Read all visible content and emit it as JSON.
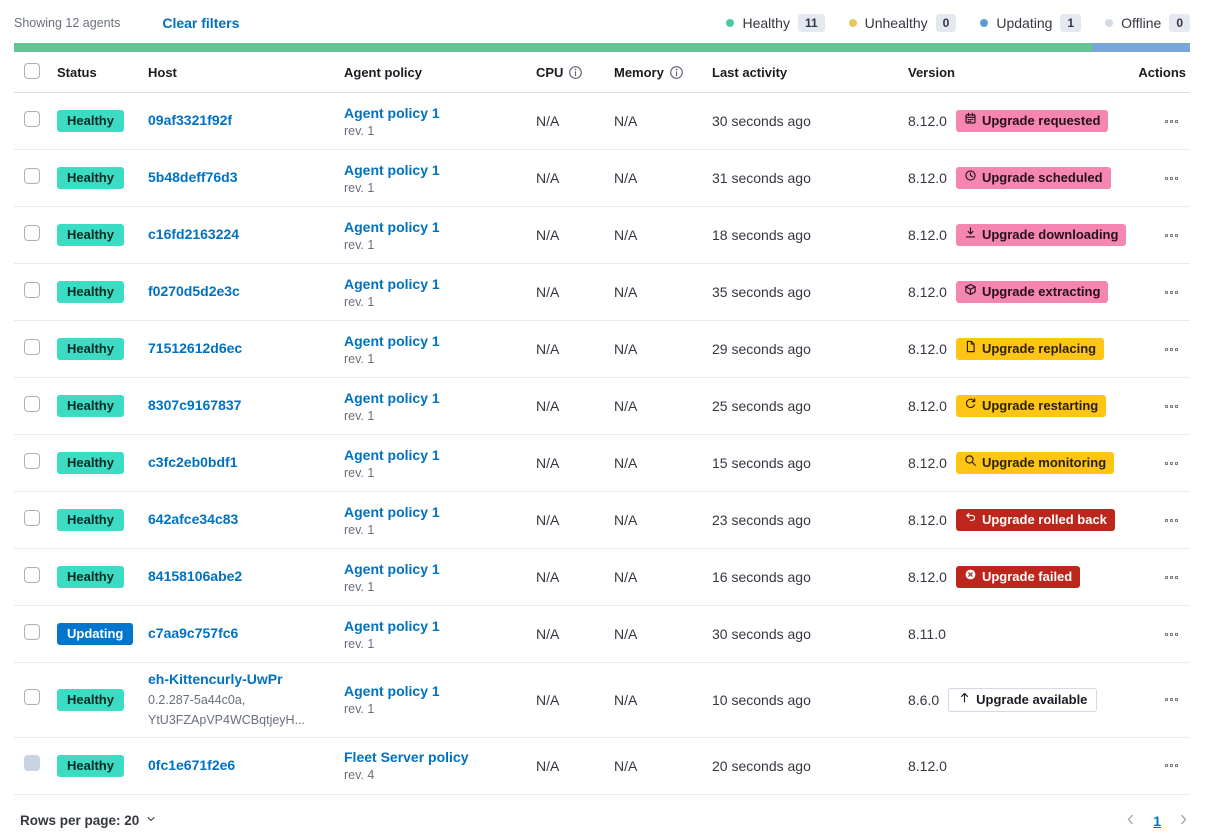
{
  "page": {
    "colors": {
      "healthy_badge": "#3BDBC4",
      "updating_badge": "#0077CC",
      "accent_badge": "#F586B1",
      "warning_badge": "#FEC514",
      "danger_badge": "#BC261D",
      "link": "#0071C2",
      "bar_healthy": "#62C593",
      "bar_updating": "#78A6DA"
    },
    "toolbar": {
      "showing_text": "Showing 12 agents",
      "clear_filters_label": "Clear filters"
    },
    "legend": [
      {
        "label": "Healthy",
        "count": "11",
        "color": "#49C9A7"
      },
      {
        "label": "Unhealthy",
        "count": "0",
        "color": "#E7C65B"
      },
      {
        "label": "Updating",
        "count": "1",
        "color": "#5C9CD6"
      },
      {
        "label": "Offline",
        "count": "0",
        "color": "#D3DAE6"
      }
    ],
    "status_bar": [
      {
        "status": "healthy",
        "color": "#62C593",
        "fraction": 0.9167
      },
      {
        "status": "updating",
        "color": "#78A6DA",
        "fraction": 0.0833
      }
    ],
    "table": {
      "headers": {
        "status": "Status",
        "host": "Host",
        "policy": "Agent policy",
        "cpu": "CPU",
        "memory": "Memory",
        "last_activity": "Last activity",
        "version": "Version",
        "actions": "Actions"
      }
    },
    "agents": [
      {
        "status": "Healthy",
        "status_variant": "success",
        "host": "09af3321f92f",
        "host_sub": [],
        "policy": "Agent policy 1",
        "policy_rev": "rev. 1",
        "policy_locked": false,
        "cpu": "N/A",
        "memory": "N/A",
        "last_activity": "30 seconds ago",
        "version": "8.12.0",
        "upgrade": {
          "label": "Upgrade requested",
          "icon": "calendar-icon",
          "variant": "accent"
        },
        "version_info": true,
        "checkbox_disabled": false
      },
      {
        "status": "Healthy",
        "status_variant": "success",
        "host": "5b48deff76d3",
        "host_sub": [],
        "policy": "Agent policy 1",
        "policy_rev": "rev. 1",
        "policy_locked": false,
        "cpu": "N/A",
        "memory": "N/A",
        "last_activity": "31 seconds ago",
        "version": "8.12.0",
        "upgrade": {
          "label": "Upgrade scheduled",
          "icon": "clock-icon",
          "variant": "accent"
        },
        "version_info": true,
        "checkbox_disabled": false
      },
      {
        "status": "Healthy",
        "status_variant": "success",
        "host": "c16fd2163224",
        "host_sub": [],
        "policy": "Agent policy 1",
        "policy_rev": "rev. 1",
        "policy_locked": false,
        "cpu": "N/A",
        "memory": "N/A",
        "last_activity": "18 seconds ago",
        "version": "8.12.0",
        "upgrade": {
          "label": "Upgrade downloading",
          "icon": "download-icon",
          "variant": "accent"
        },
        "version_info": true,
        "checkbox_disabled": false
      },
      {
        "status": "Healthy",
        "status_variant": "success",
        "host": "f0270d5d2e3c",
        "host_sub": [],
        "policy": "Agent policy 1",
        "policy_rev": "rev. 1",
        "policy_locked": false,
        "cpu": "N/A",
        "memory": "N/A",
        "last_activity": "35 seconds ago",
        "version": "8.12.0",
        "upgrade": {
          "label": "Upgrade extracting",
          "icon": "package-icon",
          "variant": "accent"
        },
        "version_info": true,
        "checkbox_disabled": false
      },
      {
        "status": "Healthy",
        "status_variant": "success",
        "host": "71512612d6ec",
        "host_sub": [],
        "policy": "Agent policy 1",
        "policy_rev": "rev. 1",
        "policy_locked": false,
        "cpu": "N/A",
        "memory": "N/A",
        "last_activity": "29 seconds ago",
        "version": "8.12.0",
        "upgrade": {
          "label": "Upgrade replacing",
          "icon": "document-icon",
          "variant": "warning"
        },
        "version_info": true,
        "checkbox_disabled": false
      },
      {
        "status": "Healthy",
        "status_variant": "success",
        "host": "8307c9167837",
        "host_sub": [],
        "policy": "Agent policy 1",
        "policy_rev": "rev. 1",
        "policy_locked": false,
        "cpu": "N/A",
        "memory": "N/A",
        "last_activity": "25 seconds ago",
        "version": "8.12.0",
        "upgrade": {
          "label": "Upgrade restarting",
          "icon": "refresh-icon",
          "variant": "warning"
        },
        "version_info": true,
        "checkbox_disabled": false
      },
      {
        "status": "Healthy",
        "status_variant": "success",
        "host": "c3fc2eb0bdf1",
        "host_sub": [],
        "policy": "Agent policy 1",
        "policy_rev": "rev. 1",
        "policy_locked": false,
        "cpu": "N/A",
        "memory": "N/A",
        "last_activity": "15 seconds ago",
        "version": "8.12.0",
        "upgrade": {
          "label": "Upgrade monitoring",
          "icon": "inspect-icon",
          "variant": "warning"
        },
        "version_info": true,
        "checkbox_disabled": false
      },
      {
        "status": "Healthy",
        "status_variant": "success",
        "host": "642afce34c83",
        "host_sub": [],
        "policy": "Agent policy 1",
        "policy_rev": "rev. 1",
        "policy_locked": false,
        "cpu": "N/A",
        "memory": "N/A",
        "last_activity": "23 seconds ago",
        "version": "8.12.0",
        "upgrade": {
          "label": "Upgrade rolled back",
          "icon": "return-icon",
          "variant": "danger"
        },
        "version_info": true,
        "checkbox_disabled": false
      },
      {
        "status": "Healthy",
        "status_variant": "success",
        "host": "84158106abe2",
        "host_sub": [],
        "policy": "Agent policy 1",
        "policy_rev": "rev. 1",
        "policy_locked": false,
        "cpu": "N/A",
        "memory": "N/A",
        "last_activity": "16 seconds ago",
        "version": "8.12.0",
        "upgrade": {
          "label": "Upgrade failed",
          "icon": "error-icon",
          "variant": "danger"
        },
        "version_info": true,
        "checkbox_disabled": false
      },
      {
        "status": "Updating",
        "status_variant": "primary",
        "host": "c7aa9c757fc6",
        "host_sub": [],
        "policy": "Agent policy 1",
        "policy_rev": "rev. 1",
        "policy_locked": false,
        "cpu": "N/A",
        "memory": "N/A",
        "last_activity": "30 seconds ago",
        "version": "8.11.0",
        "upgrade": null,
        "version_info": true,
        "checkbox_disabled": false
      },
      {
        "status": "Healthy",
        "status_variant": "success",
        "host": "eh-Kittencurly-UwPr",
        "host_sub": [
          "0.2.287-5a44c0a,",
          "YtU3FZApVP4WCBqtjeyH..."
        ],
        "policy": "Agent policy 1",
        "policy_rev": "rev. 1",
        "policy_locked": false,
        "cpu": "N/A",
        "memory": "N/A",
        "last_activity": "10 seconds ago",
        "version": "8.6.0",
        "upgrade": {
          "label": "Upgrade available",
          "icon": "arrow-up-icon",
          "variant": "hollow"
        },
        "version_info": false,
        "checkbox_disabled": false
      },
      {
        "status": "Healthy",
        "status_variant": "success",
        "host": "0fc1e671f2e6",
        "host_sub": [],
        "policy": "Fleet Server policy",
        "policy_rev": "rev. 4",
        "policy_locked": true,
        "cpu": "N/A",
        "memory": "N/A",
        "last_activity": "20 seconds ago",
        "version": "8.12.0",
        "upgrade": null,
        "version_info": false,
        "checkbox_disabled": true
      }
    ],
    "footer": {
      "rows_per_page_label": "Rows per page: 20",
      "page_number": "1"
    }
  }
}
